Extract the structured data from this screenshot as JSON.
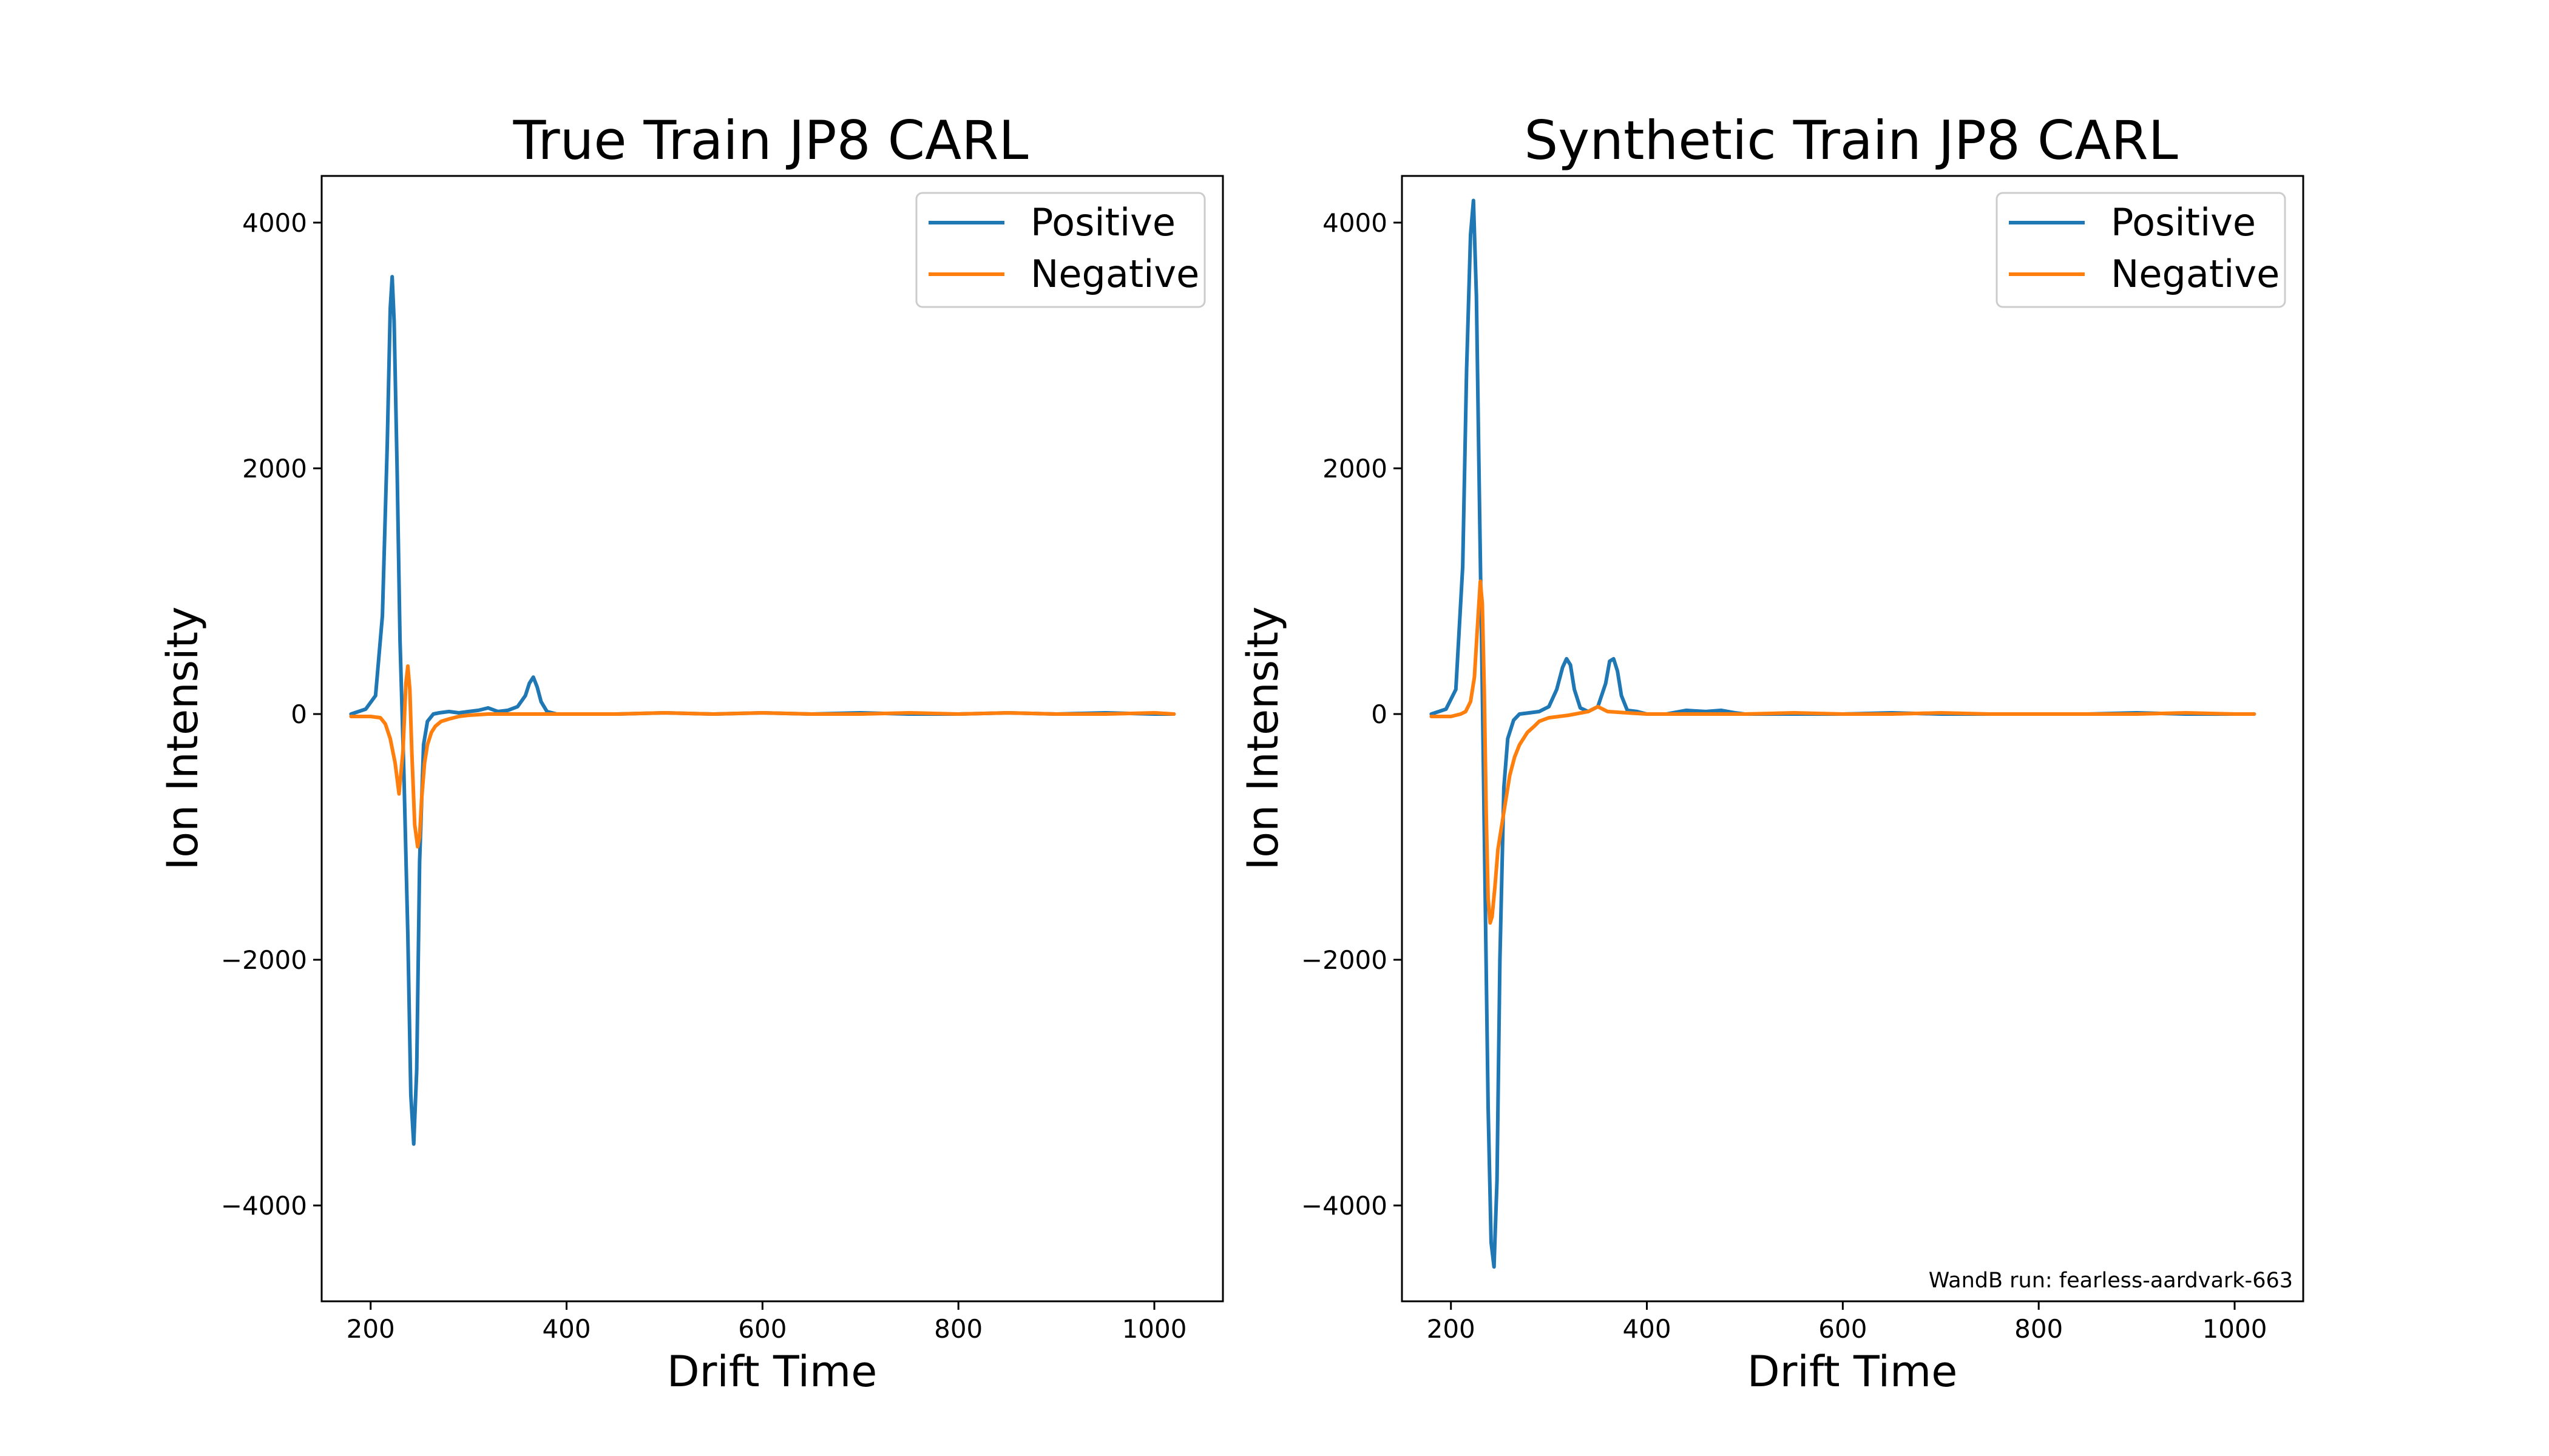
{
  "chart_data": [
    {
      "type": "line",
      "title": "True Train JP8 CARL",
      "xlabel": "Drift Time",
      "ylabel": "Ion Intensity",
      "xlim": [
        150,
        1070
      ],
      "ylim": [
        -4780,
        4380
      ],
      "xticks": [
        200,
        400,
        600,
        800,
        1000
      ],
      "yticks": [
        4000,
        2000,
        0,
        -2000,
        -4000
      ],
      "xtick_labels": [
        "200",
        "400",
        "600",
        "800",
        "1000"
      ],
      "ytick_labels": [
        "4000",
        "2000",
        "0",
        "−2000",
        "−4000"
      ],
      "legend_position": "top-right",
      "series": [
        {
          "name": "Positive",
          "color": "#1f77b4",
          "x": [
            180,
            195,
            205,
            212,
            217,
            220,
            222,
            224,
            227,
            230,
            234,
            238,
            241,
            244,
            247,
            250,
            254,
            258,
            264,
            270,
            280,
            290,
            300,
            310,
            320,
            330,
            340,
            350,
            358,
            362,
            366,
            370,
            374,
            380,
            390,
            400,
            450,
            500,
            550,
            600,
            650,
            700,
            750,
            800,
            850,
            900,
            950,
            1000,
            1020
          ],
          "y": [
            0,
            40,
            150,
            800,
            2200,
            3300,
            3560,
            3200,
            2000,
            600,
            -500,
            -1800,
            -3100,
            -3500,
            -2900,
            -1200,
            -250,
            -60,
            0,
            10,
            20,
            10,
            20,
            30,
            50,
            20,
            30,
            60,
            150,
            250,
            300,
            220,
            100,
            20,
            0,
            0,
            0,
            10,
            0,
            10,
            0,
            10,
            0,
            0,
            10,
            0,
            10,
            0,
            0
          ]
        },
        {
          "name": "Negative",
          "color": "#ff7f0e",
          "x": [
            180,
            200,
            210,
            215,
            220,
            225,
            229,
            233,
            236,
            238,
            240,
            242,
            245,
            248,
            250,
            252,
            255,
            258,
            262,
            266,
            272,
            280,
            290,
            300,
            320,
            350,
            400,
            450,
            500,
            550,
            600,
            650,
            700,
            750,
            800,
            850,
            900,
            950,
            1000,
            1020
          ],
          "y": [
            -20,
            -20,
            -30,
            -80,
            -200,
            -400,
            -650,
            -300,
            250,
            390,
            200,
            -300,
            -900,
            -1080,
            -1000,
            -700,
            -400,
            -250,
            -150,
            -100,
            -60,
            -40,
            -20,
            -10,
            0,
            0,
            0,
            0,
            10,
            0,
            10,
            0,
            0,
            10,
            0,
            10,
            0,
            0,
            10,
            0
          ]
        }
      ]
    },
    {
      "type": "line",
      "title": "Synthetic Train JP8 CARL",
      "xlabel": "Drift Time",
      "ylabel": "Ion Intensity",
      "xlim": [
        150,
        1070
      ],
      "ylim": [
        -4780,
        4380
      ],
      "xticks": [
        200,
        400,
        600,
        800,
        1000
      ],
      "yticks": [
        4000,
        2000,
        0,
        -2000,
        -4000
      ],
      "xtick_labels": [
        "200",
        "400",
        "600",
        "800",
        "1000"
      ],
      "ytick_labels": [
        "4000",
        "2000",
        "0",
        "−2000",
        "−4000"
      ],
      "legend_position": "top-right",
      "annotation": "WandB run: fearless-aardvark-663",
      "series": [
        {
          "name": "Positive",
          "color": "#1f77b4",
          "x": [
            180,
            195,
            205,
            212,
            216,
            220,
            223,
            226,
            229,
            232,
            235,
            238,
            241,
            244,
            247,
            250,
            254,
            258,
            264,
            270,
            280,
            290,
            300,
            308,
            314,
            318,
            322,
            326,
            332,
            340,
            350,
            358,
            362,
            366,
            370,
            374,
            380,
            390,
            400,
            420,
            440,
            460,
            476,
            490,
            500,
            550,
            600,
            650,
            700,
            750,
            800,
            850,
            900,
            950,
            1000,
            1020
          ],
          "y": [
            0,
            40,
            200,
            1200,
            2800,
            3900,
            4180,
            3400,
            1800,
            200,
            -1500,
            -3200,
            -4300,
            -4500,
            -3800,
            -2000,
            -600,
            -200,
            -50,
            0,
            10,
            20,
            60,
            200,
            380,
            450,
            400,
            200,
            50,
            20,
            60,
            250,
            430,
            450,
            350,
            150,
            30,
            20,
            0,
            0,
            30,
            20,
            30,
            10,
            0,
            0,
            0,
            10,
            0,
            0,
            0,
            0,
            10,
            0,
            0,
            0
          ]
        },
        {
          "name": "Negative",
          "color": "#ff7f0e",
          "x": [
            180,
            200,
            210,
            215,
            220,
            224,
            227,
            230,
            232,
            234,
            236,
            238,
            240,
            242,
            245,
            248,
            252,
            256,
            260,
            265,
            270,
            278,
            285,
            290,
            300,
            320,
            340,
            350,
            360,
            380,
            400,
            450,
            500,
            550,
            600,
            650,
            700,
            750,
            800,
            850,
            900,
            950,
            1000,
            1020
          ],
          "y": [
            -20,
            -20,
            0,
            20,
            100,
            300,
            700,
            1080,
            900,
            200,
            -800,
            -1500,
            -1700,
            -1650,
            -1400,
            -1100,
            -900,
            -700,
            -500,
            -350,
            -250,
            -150,
            -100,
            -60,
            -30,
            -10,
            20,
            60,
            20,
            10,
            0,
            0,
            0,
            10,
            0,
            0,
            10,
            0,
            0,
            0,
            0,
            10,
            0,
            0
          ]
        }
      ]
    }
  ]
}
